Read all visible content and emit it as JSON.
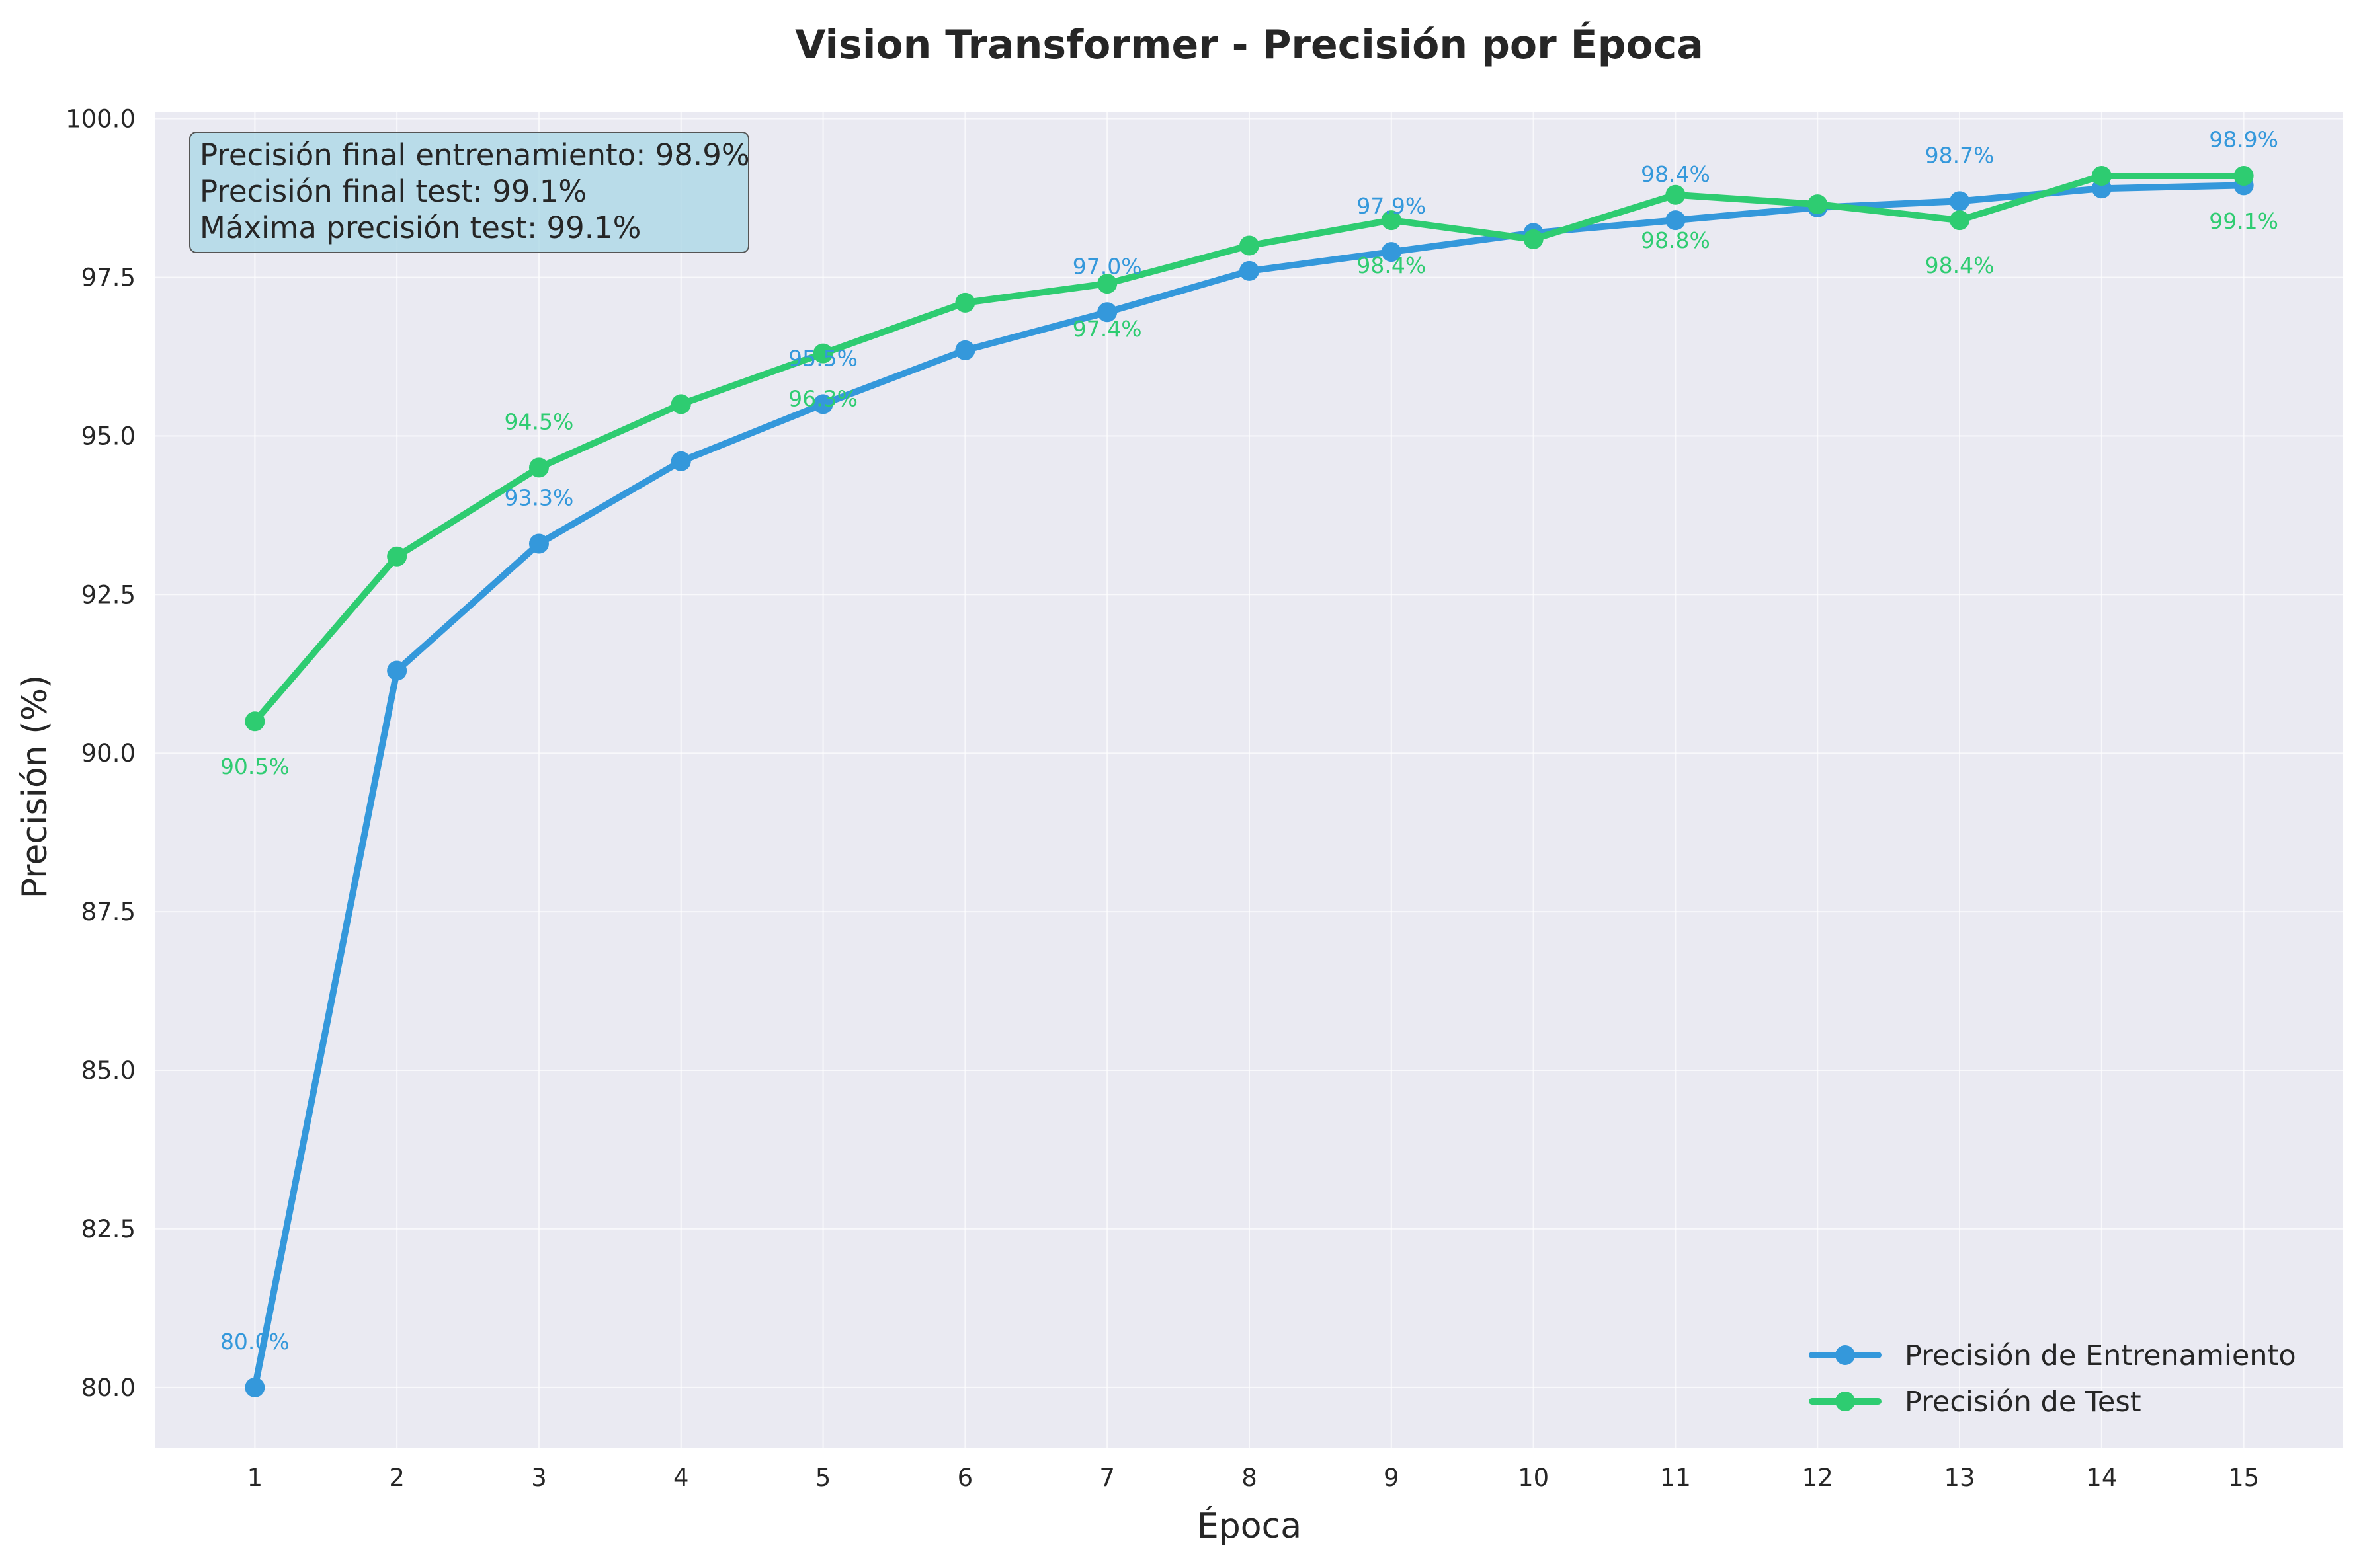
{
  "chart_data": {
    "type": "line",
    "title": "Vision Transformer - Precisión por Época",
    "xlabel": "Época",
    "ylabel": "Precisión (%)",
    "x": [
      1,
      2,
      3,
      4,
      5,
      6,
      7,
      8,
      9,
      10,
      11,
      12,
      13,
      14,
      15
    ],
    "xlim": [
      0.3,
      15.7
    ],
    "ylim": [
      79.05,
      100.1
    ],
    "yticks": [
      80.0,
      82.5,
      85.0,
      87.5,
      90.0,
      92.5,
      95.0,
      97.5,
      100.0
    ],
    "ytick_labels": [
      "80.0",
      "82.5",
      "85.0",
      "87.5",
      "90.0",
      "92.5",
      "95.0",
      "97.5",
      "100.0"
    ],
    "xtick_labels": [
      "1",
      "2",
      "3",
      "4",
      "5",
      "6",
      "7",
      "8",
      "9",
      "10",
      "11",
      "12",
      "13",
      "14",
      "15"
    ],
    "grid": true,
    "legend_position": "lower-right",
    "series": [
      {
        "name": "Precisión de Entrenamiento",
        "color": "#3498db",
        "values": [
          80.0,
          91.3,
          93.3,
          94.6,
          95.5,
          96.35,
          96.95,
          97.6,
          97.9,
          98.2,
          98.4,
          98.6,
          98.7,
          98.9,
          98.95
        ]
      },
      {
        "name": "Precisión de Test",
        "color": "#2ecc71",
        "values": [
          90.5,
          93.1,
          94.5,
          95.5,
          96.3,
          97.1,
          97.4,
          98.0,
          98.4,
          98.1,
          98.8,
          98.65,
          98.4,
          99.1,
          99.1
        ]
      }
    ],
    "annotations": [
      {
        "series": 0,
        "x": 1,
        "text": "80.0%",
        "position": "above"
      },
      {
        "series": 0,
        "x": 3,
        "text": "93.3%",
        "position": "above"
      },
      {
        "series": 0,
        "x": 5,
        "text": "95.5%",
        "position": "above"
      },
      {
        "series": 0,
        "x": 7,
        "text": "97.0%",
        "position": "above"
      },
      {
        "series": 0,
        "x": 9,
        "text": "97.9%",
        "position": "above"
      },
      {
        "series": 0,
        "x": 11,
        "text": "98.4%",
        "position": "above"
      },
      {
        "series": 0,
        "x": 13,
        "text": "98.7%",
        "position": "above"
      },
      {
        "series": 0,
        "x": 15,
        "text": "98.9%",
        "position": "above"
      },
      {
        "series": 1,
        "x": 1,
        "text": "90.5%",
        "position": "below"
      },
      {
        "series": 1,
        "x": 3,
        "text": "94.5%",
        "position": "above"
      },
      {
        "series": 1,
        "x": 5,
        "text": "96.3%",
        "position": "below"
      },
      {
        "series": 1,
        "x": 7,
        "text": "97.4%",
        "position": "below"
      },
      {
        "series": 1,
        "x": 9,
        "text": "98.4%",
        "position": "below"
      },
      {
        "series": 1,
        "x": 11,
        "text": "98.8%",
        "position": "below"
      },
      {
        "series": 1,
        "x": 13,
        "text": "98.4%",
        "position": "below"
      },
      {
        "series": 1,
        "x": 15,
        "text": "99.1%",
        "position": "below"
      }
    ],
    "stats_box": [
      "Precisión final entrenamiento: 98.9%",
      "Precisión final test: 99.1%",
      "Máxima precisión test: 99.1%"
    ],
    "colors": {
      "plot_background": "#eaeaf2",
      "grid": "#ffffff",
      "stats_box_fill": "#add8e6"
    }
  }
}
